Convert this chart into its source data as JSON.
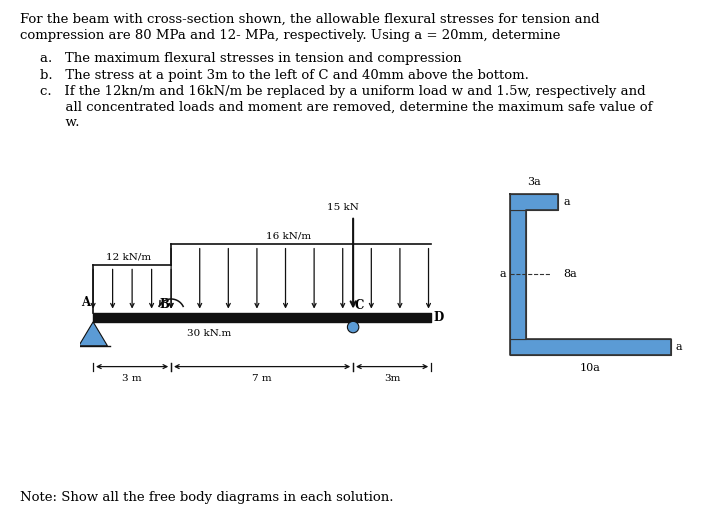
{
  "title_line1": "For the beam with cross-section shown, the allowable flexural stresses for tension and",
  "title_line2": "compression are 80 MPa and 12- MPa, respectively. Using a = 20mm, determine",
  "item_a": "a.   The maximum flexural stresses in tension and compression",
  "item_b": "b.   The stress at a point 3m to the left of C and 40mm above the bottom.",
  "item_c1": "c.   If the 12kn/m and 16kN/m be replaced by a uniform load w and 1.5w, respectively and",
  "item_c2": "      all concentrated loads and moment are removed, determine the maximum safe value of",
  "item_c3": "      w.",
  "note_text": "Note: Show all the free body diagrams in each solution.",
  "beam_color": "#111111",
  "blue_color": "#5B9BD5",
  "bg_color": "#ffffff",
  "font_size": 9.5
}
